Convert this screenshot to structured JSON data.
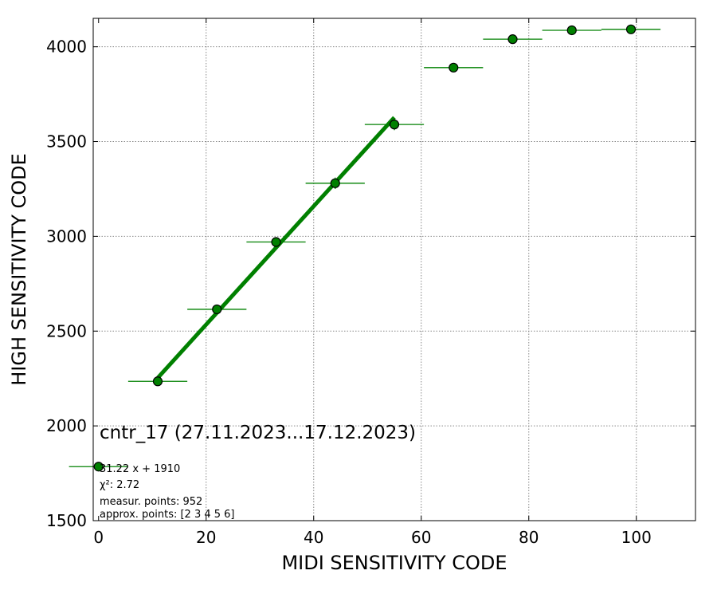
{
  "chart_data": {
    "type": "scatter",
    "xlabel": "MIDI SENSITIVITY CODE",
    "ylabel": "HIGH SENSITIVITY CODE",
    "xlim": [
      -1,
      111
    ],
    "ylim": [
      1500,
      4150
    ],
    "xticks": [
      0,
      20,
      40,
      60,
      80,
      100
    ],
    "yticks": [
      1500,
      2000,
      2500,
      3000,
      3500,
      4000
    ],
    "grid": true,
    "grid_style": "dotted",
    "colors": {
      "marker_face": "#008000",
      "marker_edge": "#000000",
      "errorbar": "#008000",
      "fit_line": "#008000",
      "grid": "#888888"
    },
    "points": [
      {
        "x": 0,
        "y": 1785,
        "xerr": 5.5
      },
      {
        "x": 11,
        "y": 2235,
        "xerr": 5.5
      },
      {
        "x": 22,
        "y": 2615,
        "xerr": 5.5
      },
      {
        "x": 33,
        "y": 2970,
        "xerr": 5.5,
        "yerr": 15
      },
      {
        "x": 44,
        "y": 3280,
        "xerr": 5.5,
        "yerr": 30
      },
      {
        "x": 55,
        "y": 3590,
        "xerr": 5.5,
        "yerr": 30
      },
      {
        "x": 66,
        "y": 3890,
        "xerr": 5.5
      },
      {
        "x": 77,
        "y": 4040,
        "xerr": 5.5
      },
      {
        "x": 88,
        "y": 4087,
        "xerr": 5.5
      },
      {
        "x": 99,
        "y": 4092,
        "xerr": 5.5
      }
    ],
    "fit": {
      "slope": 31.22,
      "intercept": 1910,
      "x_range": [
        11,
        55
      ]
    },
    "annotations": {
      "title": "cntr_17 (27.11.2023...17.12.2023)",
      "fit_label": "31.22 x + 1910",
      "chi2_label": "χ²: 2.72",
      "measur_points": "measur. points: 952",
      "approx_points": "approx. points: [2 3 4 5 6]"
    }
  }
}
